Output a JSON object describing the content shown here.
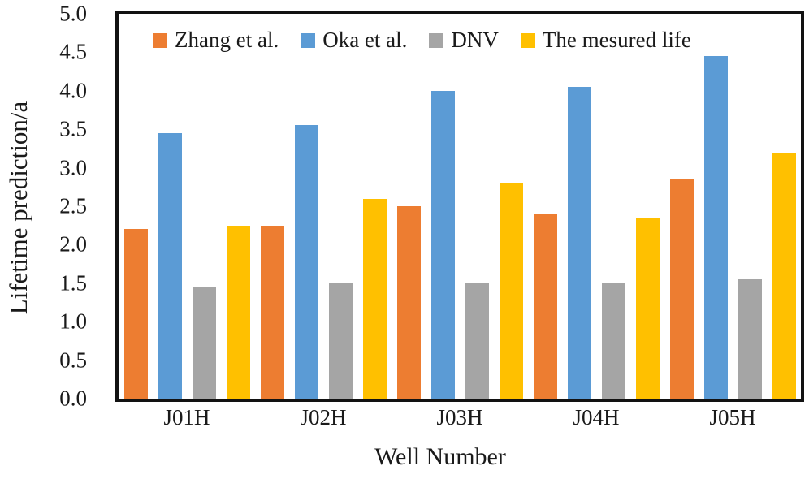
{
  "chart_data": {
    "type": "bar",
    "title": "",
    "xlabel": "Well Number",
    "ylabel": "Lifetime prediction/a",
    "categories": [
      "J01H",
      "J02H",
      "J03H",
      "J04H",
      "J05H"
    ],
    "series": [
      {
        "name": "Zhang et al.",
        "color": "#ED7D31",
        "values": [
          2.2,
          2.25,
          2.5,
          2.4,
          2.85
        ]
      },
      {
        "name": "Oka et al.",
        "color": "#5B9BD5",
        "values": [
          3.45,
          3.55,
          4.0,
          4.05,
          4.45
        ]
      },
      {
        "name": "DNV",
        "color": "#A5A5A5",
        "values": [
          1.45,
          1.5,
          1.5,
          1.5,
          1.55
        ]
      },
      {
        "name": "The mesured life",
        "color": "#FFC000",
        "values": [
          2.25,
          2.6,
          2.8,
          2.35,
          3.2
        ]
      }
    ],
    "ylim": [
      0,
      5
    ],
    "ytick_step": 0.5,
    "yticks": [
      "5.0",
      "4.5",
      "4.0",
      "3.5",
      "3.0",
      "2.5",
      "2.0",
      "1.5",
      "1.0",
      "0.5",
      "0.0"
    ],
    "grid": false,
    "legend_position": "top-inside",
    "frame_color": "#121212",
    "text_color": "#1a1a1a"
  }
}
